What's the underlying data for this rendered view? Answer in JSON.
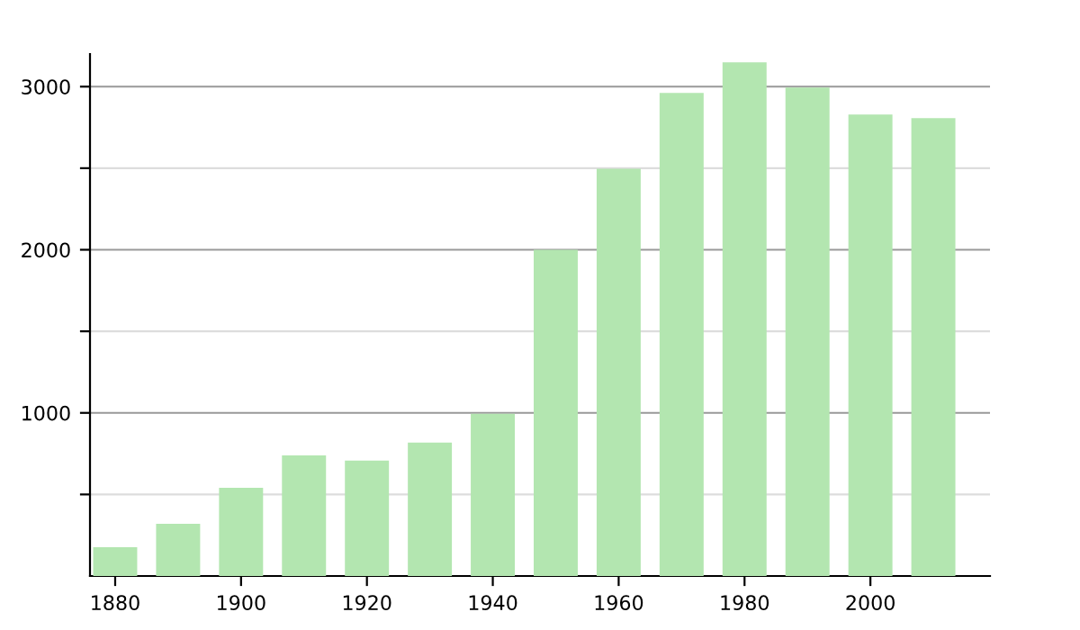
{
  "chart_data": {
    "type": "bar",
    "x": [
      1880,
      1890,
      1900,
      1910,
      1920,
      1930,
      1940,
      1950,
      1960,
      1970,
      1980,
      1990,
      2000,
      2010
    ],
    "values": [
      177,
      320,
      541,
      740,
      707,
      818,
      995,
      2000,
      2497,
      2961,
      3149,
      2994,
      2829,
      2807
    ],
    "color": "#b3e6b0",
    "xlim": [
      1876,
      2019
    ],
    "xticks": [
      1880,
      1900,
      1920,
      1940,
      1960,
      1980,
      2000
    ],
    "ylim": [
      0,
      3200
    ],
    "yticks": [
      {
        "value": 500,
        "label": null
      },
      1000,
      {
        "value": 1500,
        "label": null
      },
      2000,
      {
        "value": 2500,
        "label": null
      },
      3000
    ],
    "grid": "y",
    "legend": false
  }
}
